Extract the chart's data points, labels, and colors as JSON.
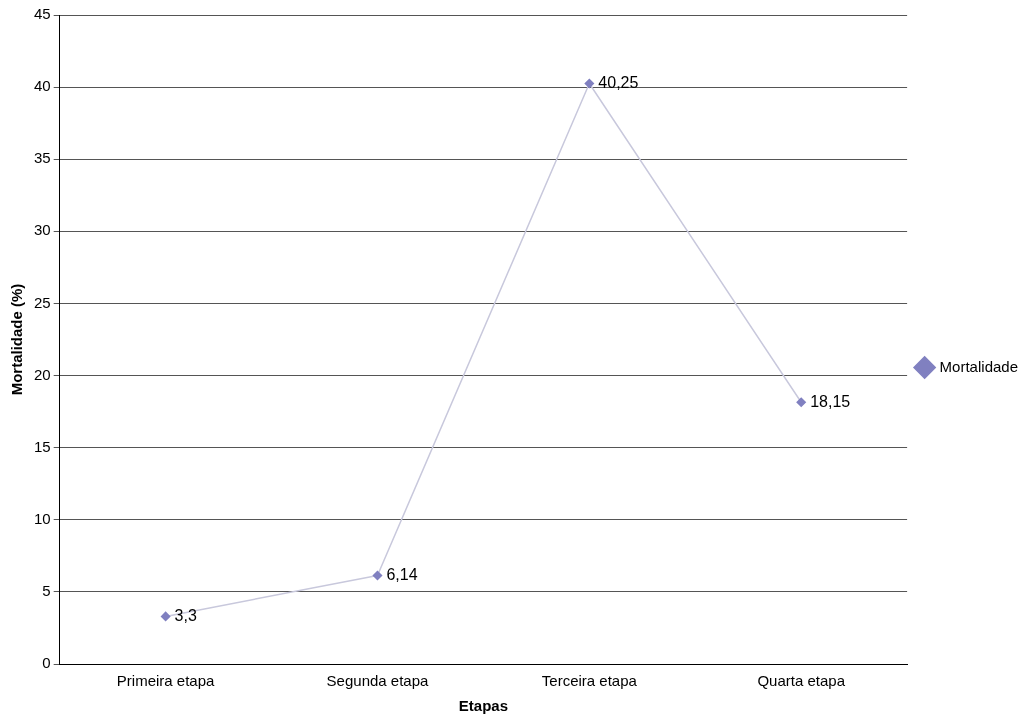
{
  "chart_data": {
    "type": "line",
    "xlabel": "Etapas",
    "ylabel": "Mortalidade (%)",
    "categories": [
      "Primeira etapa",
      "Segunda etapa",
      "Terceira etapa",
      "Quarta etapa"
    ],
    "series": [
      {
        "name": "Mortalidade",
        "color": "#8080c0",
        "values": [
          3.3,
          6.14,
          40.25,
          18.15
        ],
        "value_labels": [
          "3,3",
          "6,14",
          "40,25",
          "18,15"
        ]
      }
    ],
    "ylim": [
      0,
      45
    ],
    "yticks": [
      0,
      5,
      10,
      15,
      20,
      25,
      30,
      35,
      40,
      45
    ],
    "grid": "y",
    "legend": "right",
    "marker": "diamond",
    "line_style": "solid"
  }
}
